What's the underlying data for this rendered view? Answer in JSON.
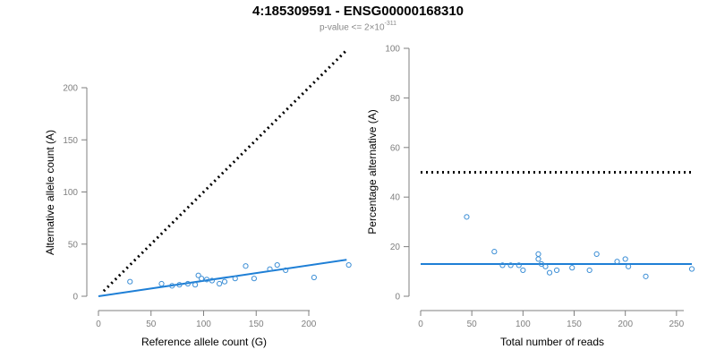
{
  "title": "4:185309591 - ENSG00000168310",
  "subtitle": {
    "text": "p-value <= 2×10",
    "exponent": "-311"
  },
  "colors": {
    "points": "#3d8fd6",
    "fit_line": "#1e7fd6",
    "reference_line": "#000000",
    "axis": "#7f7f7f"
  },
  "chart_data": [
    {
      "type": "scatter",
      "xlabel": "Reference allele count (G)",
      "ylabel": "Alternative allele count (A)",
      "xlim": [
        0,
        240
      ],
      "ylim": [
        0,
        200
      ],
      "x_ticks": [
        0,
        50,
        100,
        150,
        200
      ],
      "y_ticks": [
        0,
        50,
        100,
        150,
        200
      ],
      "points": [
        [
          30,
          14
        ],
        [
          60,
          12
        ],
        [
          70,
          10
        ],
        [
          77,
          11
        ],
        [
          85,
          12
        ],
        [
          92,
          11
        ],
        [
          95,
          20
        ],
        [
          98,
          17
        ],
        [
          103,
          16
        ],
        [
          108,
          15
        ],
        [
          115,
          12
        ],
        [
          120,
          14
        ],
        [
          130,
          17
        ],
        [
          140,
          29
        ],
        [
          148,
          17
        ],
        [
          163,
          26
        ],
        [
          170,
          30
        ],
        [
          178,
          25
        ],
        [
          205,
          18
        ],
        [
          238,
          30
        ]
      ],
      "fit_line": [
        [
          0,
          0
        ],
        [
          236,
          35
        ]
      ],
      "reference_line": [
        [
          5,
          5
        ],
        [
          236,
          236
        ]
      ]
    },
    {
      "type": "scatter",
      "xlabel": "Total number of reads",
      "ylabel": "Percentage alternative (A)",
      "xlim": [
        0,
        265
      ],
      "ylim": [
        0,
        100
      ],
      "x_ticks": [
        0,
        50,
        100,
        150,
        200,
        250
      ],
      "y_ticks": [
        0,
        20,
        40,
        60,
        80,
        100
      ],
      "points": [
        [
          45,
          32
        ],
        [
          72,
          18
        ],
        [
          80,
          12.5
        ],
        [
          88,
          12.5
        ],
        [
          96,
          12.5
        ],
        [
          100,
          10.5
        ],
        [
          115,
          17
        ],
        [
          115,
          15
        ],
        [
          118,
          13
        ],
        [
          122,
          12
        ],
        [
          126,
          9.5
        ],
        [
          133,
          10.5
        ],
        [
          148,
          11.5
        ],
        [
          165,
          10.5
        ],
        [
          172,
          17
        ],
        [
          192,
          14
        ],
        [
          200,
          15
        ],
        [
          203,
          12
        ],
        [
          220,
          8
        ],
        [
          265,
          11
        ]
      ],
      "fit_line": [
        [
          0,
          13
        ],
        [
          265,
          13
        ]
      ],
      "reference_line": [
        [
          0,
          50
        ],
        [
          265,
          50
        ]
      ]
    }
  ]
}
